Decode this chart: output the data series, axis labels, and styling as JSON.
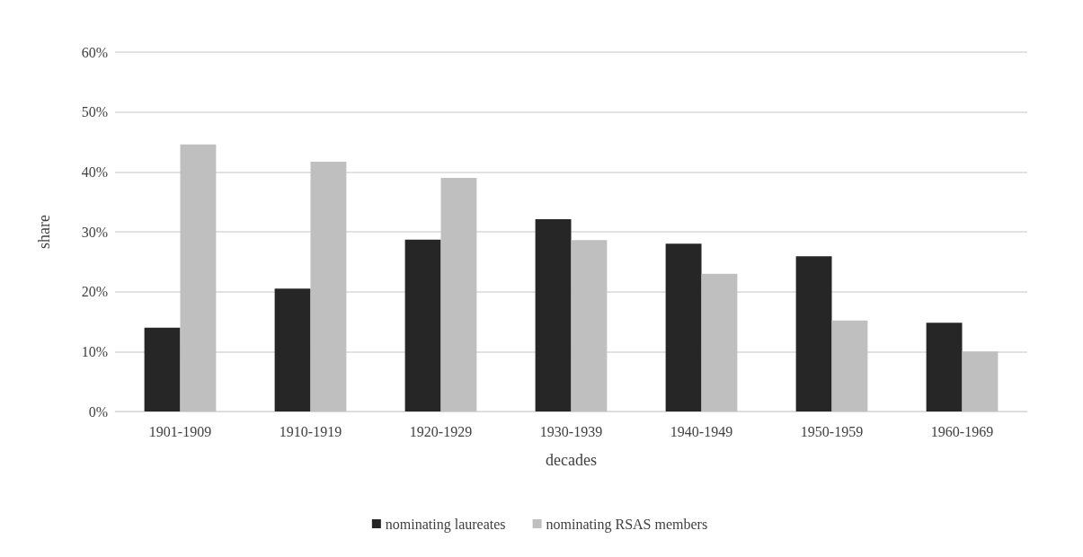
{
  "chart_data": {
    "type": "bar",
    "xlabel": "decades",
    "ylabel": "share",
    "categories": [
      "1901-1909",
      "1910-1919",
      "1920-1929",
      "1930-1939",
      "1940-1949",
      "1950-1959",
      "1960-1969"
    ],
    "series": [
      {
        "name": "nominating laureates",
        "color": "#262626",
        "values": [
          0.14,
          0.205,
          0.287,
          0.321,
          0.28,
          0.259,
          0.148
        ]
      },
      {
        "name": "nominating RSAS members",
        "color": "#bfbfbf",
        "values": [
          0.446,
          0.417,
          0.39,
          0.286,
          0.23,
          0.152,
          0.1
        ]
      }
    ],
    "ylim": [
      0,
      0.6
    ],
    "yticks": [
      {
        "value": 0,
        "label": "0%"
      },
      {
        "value": 0.1,
        "label": "10%"
      },
      {
        "value": 0.2,
        "label": "20%"
      },
      {
        "value": 0.3,
        "label": "30%"
      },
      {
        "value": 0.4,
        "label": "40%"
      },
      {
        "value": 0.5,
        "label": "50%"
      },
      {
        "value": 0.6,
        "label": "60%"
      }
    ],
    "grid": "y",
    "legend": "bottom"
  }
}
